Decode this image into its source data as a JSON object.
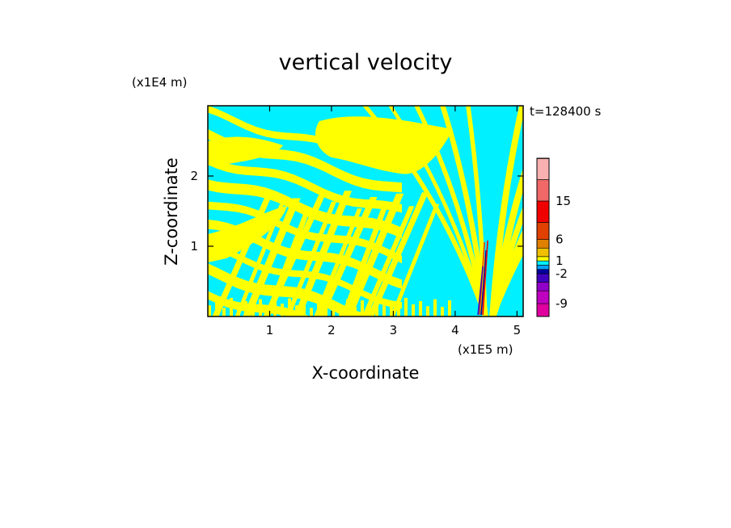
{
  "chart_data": {
    "type": "heatmap",
    "title": "vertical velocity",
    "xlabel": "X-coordinate",
    "ylabel": "Z-coordinate",
    "x_scale_label": "(x1E5 m)",
    "y_scale_label": "(x1E4 m)",
    "time_label": "t=128400 s",
    "xlim": [
      0.0,
      5.1
    ],
    "ylim": [
      0.0,
      3.0
    ],
    "x_ticks": [
      1,
      2,
      3,
      4,
      5
    ],
    "y_ticks": [
      1,
      2
    ],
    "x_tick_labels": [
      "1",
      "2",
      "3",
      "4",
      "5"
    ],
    "y_tick_labels": [
      "1",
      "2"
    ],
    "grid": false,
    "legend": "colorbar-right",
    "colorbar": {
      "levels": [
        -12,
        -9,
        -6,
        -4,
        -2,
        -1,
        0,
        1,
        2,
        4,
        6,
        10,
        15,
        20,
        25
      ],
      "colors": [
        "#e000a0",
        "#c000c0",
        "#9000c8",
        "#4000c0",
        "#0000a0",
        "#00a0ff",
        "#00f0ff",
        "#ffff00",
        "#f0c000",
        "#e08000",
        "#e04000",
        "#f00000",
        "#f06868",
        "#f8b0b0",
        "#ffe8e0"
      ],
      "tick_labels": [
        "-9",
        "-2",
        "1",
        "6",
        "15"
      ],
      "tick_values": [
        -9,
        -2,
        1,
        6,
        15
      ]
    },
    "field_colors": {
      "positive": "#ffff00",
      "negative": "#00f0ff"
    }
  }
}
